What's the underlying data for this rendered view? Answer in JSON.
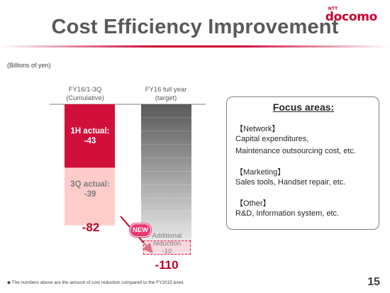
{
  "title": "Cost Efficiency Improvement",
  "logo": {
    "main": "docomo",
    "small": "NTT"
  },
  "unit_note": "(Billions of yen)",
  "chart_data": {
    "type": "bar",
    "stacked": true,
    "categories": [
      "FY16/1-3Q (Cumulative)",
      "FY16 full year (target)"
    ],
    "category_labels": [
      [
        "FY16/1-3Q",
        "(Cumulative)"
      ],
      [
        "FY16 full year",
        "(target)"
      ]
    ],
    "series": [
      {
        "name": "1H actual",
        "label_lines": [
          "1H actual:",
          "-43"
        ],
        "values": [
          -43,
          null
        ],
        "color": "#d0103a"
      },
      {
        "name": "3Q actual",
        "label_lines": [
          "3Q actual:",
          "-39"
        ],
        "values": [
          -39,
          null
        ],
        "color": "#ffcccc"
      },
      {
        "name": "FY16 full year (target)",
        "values": [
          null,
          -100
        ],
        "color": "#8c8c8c"
      },
      {
        "name": "Additional reduction",
        "label_lines": [
          "Additional",
          "reduction",
          "-10"
        ],
        "values": [
          null,
          -10
        ],
        "color": "#ffd6de"
      }
    ],
    "totals": [
      "-82",
      "-110"
    ],
    "ylim": [
      -110,
      0
    ],
    "annotations": [
      "NEW"
    ]
  },
  "focus": {
    "title": "Focus areas:",
    "groups": [
      {
        "heading": "【Network】",
        "lines": [
          "Capital expenditures,",
          "Maintenance outsourcing cost, etc."
        ]
      },
      {
        "heading": "【Marketing】",
        "lines": [
          "Sales tools, Handset repair, etc."
        ]
      },
      {
        "heading": "【Other】",
        "lines": [
          "R&D, Information system, etc."
        ]
      }
    ]
  },
  "footnote": "◆ The numbers above are the amount of cost reduction compared to the FY2015 level.",
  "page_number": "15"
}
